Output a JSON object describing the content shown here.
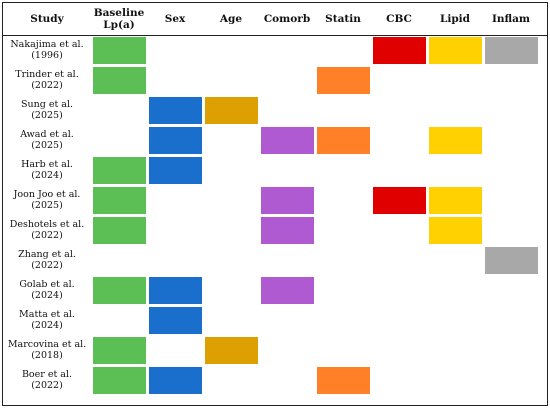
{
  "headers": [
    "Study",
    "Baseline\nLp(a)",
    "Sex",
    "Age",
    "Comorb",
    "Statin",
    "CBC",
    "Lipid",
    "Inflam"
  ],
  "colors": {
    "baseline": "#5cbf55",
    "sex": "#1a6fcc",
    "age": "#dca000",
    "comorb": "#b05ad2",
    "statin": "#ff8026",
    "cbc": "#e00000",
    "lipid": "#ffd100",
    "inflam": "#a8a8a8"
  },
  "rows": [
    {
      "study": "Nakajima  et al.\n(1996)",
      "cells": [
        1,
        0,
        0,
        0,
        0,
        1,
        1,
        1
      ]
    },
    {
      "study": "Trinder et al.\n(2022)",
      "cells": [
        1,
        0,
        0,
        0,
        1,
        0,
        0,
        0
      ]
    },
    {
      "study": "Sung et al.\n(2025)",
      "cells": [
        0,
        1,
        1,
        0,
        0,
        0,
        0,
        0
      ]
    },
    {
      "study": "Awad et al.\n(2025)",
      "cells": [
        0,
        1,
        0,
        1,
        1,
        0,
        1,
        0
      ]
    },
    {
      "study": "Harb et al.\n(2024)",
      "cells": [
        1,
        1,
        0,
        0,
        0,
        0,
        0,
        0
      ]
    },
    {
      "study": "Joon Joo et al.\n(2025)",
      "cells": [
        1,
        0,
        0,
        1,
        0,
        1,
        1,
        0
      ]
    },
    {
      "study": "Deshotels et al.\n(2022)",
      "cells": [
        1,
        0,
        0,
        1,
        0,
        0,
        1,
        0
      ]
    },
    {
      "study": "Zhang et al.\n(2022)",
      "cells": [
        0,
        0,
        0,
        0,
        0,
        0,
        0,
        1
      ]
    },
    {
      "study": "Golab et al.\n(2024)",
      "cells": [
        1,
        1,
        0,
        1,
        0,
        0,
        0,
        0
      ]
    },
    {
      "study": "Matta et al.\n(2024)",
      "cells": [
        0,
        1,
        0,
        0,
        0,
        0,
        0,
        0
      ]
    },
    {
      "study": "Marcovina et al.\n(2018)",
      "cells": [
        1,
        0,
        1,
        0,
        0,
        0,
        0,
        0
      ]
    },
    {
      "study": "Boer et al.\n(2022)",
      "cells": [
        1,
        1,
        0,
        0,
        1,
        0,
        0,
        0
      ]
    }
  ]
}
